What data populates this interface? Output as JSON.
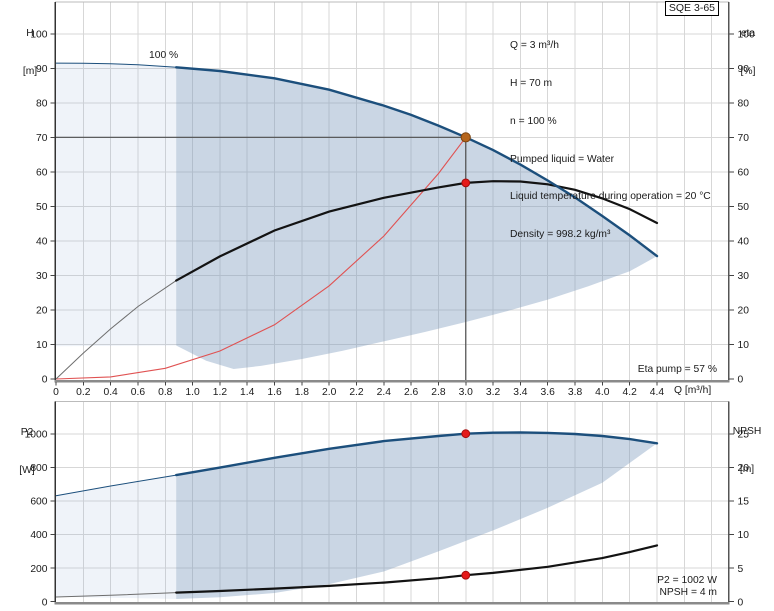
{
  "window": {
    "product": "SQE 3-65"
  },
  "labels": {
    "speed": "100 %",
    "eta_result": "Eta pump = 57 %",
    "p2_result": "P2 = 1002 W",
    "npsh_result": "NPSH = 4 m",
    "q_axis": "Q [m³/h]",
    "h_axis_1": "H",
    "h_axis_2": "[m]",
    "eta_axis_1": "eta",
    "eta_axis_2": "[%]",
    "p2_axis_1": "P2",
    "p2_axis_2": "[W]",
    "npsh_axis_1": "NPSH",
    "npsh_axis_2": "[m]"
  },
  "info_lines": [
    "Q = 3 m³/h",
    "H = 70 m",
    "n = 100 %",
    "Pumped liquid = Water",
    "Liquid temperature during operation = 20 °C",
    "Density = 998.2 kg/m³"
  ],
  "colors": {
    "curve_blue": "#1c4f7c",
    "curve_black": "#131313",
    "curve_black_thin": "#6e6e6e",
    "curve_red": "#e05252",
    "duty_line": "#4d4d4d",
    "marker_duty_fill": "#b5651d",
    "marker_duty_stroke": "#7d4410",
    "marker_red_fill": "#e51a1a",
    "marker_red_stroke": "#a50d0d",
    "fill_light": "rgba(140,170,210,0.14)",
    "fill_dark": "rgba(122,152,188,0.40)",
    "grid": "#d7d7d7",
    "axis_left": "#333333",
    "axis_right": "#555555",
    "axis_top": "#bbbbbb",
    "axis_bottom": "#8a8a8a",
    "tick": "#444444",
    "text": "#1a1a1a"
  },
  "chart_data": [
    {
      "type": "line",
      "name": "qh-eta-chart",
      "xlabel": "Q [m³/h]",
      "ylabel_left": "H [m]",
      "ylabel_right": "eta [%]",
      "xlim": [
        0,
        4.92
      ],
      "ylim": [
        0,
        109.2
      ],
      "right_scale": 1,
      "show_x_labels": true,
      "x_ticks": [
        0,
        0.2,
        0.4,
        0.6,
        0.8,
        1,
        1.2,
        1.4,
        1.6,
        1.8,
        2,
        2.2,
        2.4,
        2.6,
        2.8,
        3,
        3.2,
        3.4,
        3.6,
        3.8,
        4,
        4.2,
        4.4
      ],
      "x_tick_labels": [
        "0",
        "0.2",
        "0.4",
        "0.6",
        "0.8",
        "1.0",
        "1.2",
        "1.4",
        "1.6",
        "1.8",
        "2.0",
        "2.2",
        "2.4",
        "2.6",
        "2.8",
        "3.0",
        "3.2",
        "3.4",
        "3.6",
        "3.8",
        "4.0",
        "4.2",
        "4.4"
      ],
      "x_grid_extra": [
        4.6,
        4.8
      ],
      "y_ticks": [
        0,
        10,
        20,
        30,
        40,
        50,
        60,
        70,
        80,
        90,
        100
      ],
      "y_tick_labels": [
        "0",
        "10",
        "20",
        "30",
        "40",
        "50",
        "60",
        "70",
        "80",
        "90",
        "100"
      ],
      "right_ticks": [
        0,
        10,
        20,
        30,
        40,
        50,
        60,
        70,
        80,
        90,
        100
      ],
      "right_tick_labels": [
        "0",
        "10",
        "20",
        "30",
        "40",
        "50",
        "60",
        "70",
        "80",
        "90",
        "100"
      ],
      "areas": [
        {
          "name": "duty-area-light",
          "fill": "fill_light",
          "upper": [
            [
              0,
              91.5
            ],
            [
              0.2,
              91.45
            ],
            [
              0.4,
              91.3
            ],
            [
              0.6,
              91.0
            ],
            [
              0.88,
              90.3
            ]
          ],
          "lower": [
            [
              0,
              9.5
            ],
            [
              0.88,
              9.7
            ]
          ]
        },
        {
          "name": "duty-area-dark",
          "fill": "fill_dark",
          "upper": [
            [
              0.88,
              90.3
            ],
            [
              1.2,
              89.2
            ],
            [
              1.6,
              87.1
            ],
            [
              2.0,
              83.8
            ],
            [
              2.4,
              79.2
            ],
            [
              2.6,
              76.5
            ],
            [
              2.8,
              73.4
            ],
            [
              3.0,
              70.0
            ],
            [
              3.2,
              66.3
            ],
            [
              3.4,
              62.1
            ],
            [
              3.6,
              57.5
            ],
            [
              3.8,
              52.6
            ],
            [
              4.0,
              47.2
            ],
            [
              4.2,
              41.6
            ],
            [
              4.4,
              35.6
            ]
          ],
          "lower": [
            [
              0.88,
              9.7
            ],
            [
              1.1,
              5.3
            ],
            [
              1.3,
              2.9
            ],
            [
              1.5,
              3.8
            ],
            [
              1.8,
              5.8
            ],
            [
              2.1,
              8.2
            ],
            [
              2.4,
              10.9
            ],
            [
              2.7,
              13.6
            ],
            [
              3.0,
              16.5
            ],
            [
              3.3,
              19.6
            ],
            [
              3.6,
              23.0
            ],
            [
              3.9,
              26.9
            ],
            [
              4.2,
              31.2
            ],
            [
              4.4,
              35.6
            ]
          ]
        }
      ],
      "series": [
        {
          "name": "system-curve",
          "color": "curve_red",
          "width": 1.1,
          "points": [
            [
              0,
              0
            ],
            [
              0.4,
              0.6
            ],
            [
              0.8,
              3.1
            ],
            [
              1.2,
              8.1
            ],
            [
              1.6,
              15.7
            ],
            [
              2.0,
              27.0
            ],
            [
              2.4,
              41.4
            ],
            [
              2.8,
              59.5
            ],
            [
              3.0,
              70.0
            ]
          ]
        },
        {
          "name": "eta-curve",
          "color": "curve_black",
          "thin_color": "curve_black_thin",
          "width": 2.2,
          "thin_until": 0.88,
          "points": [
            [
              0,
              0
            ],
            [
              0.2,
              7.5
            ],
            [
              0.4,
              14.5
            ],
            [
              0.6,
              21.0
            ],
            [
              0.88,
              28.5
            ],
            [
              1.2,
              35.5
            ],
            [
              1.6,
              43.0
            ],
            [
              2.0,
              48.5
            ],
            [
              2.4,
              52.5
            ],
            [
              2.8,
              55.5
            ],
            [
              3.0,
              56.8
            ],
            [
              3.2,
              57.3
            ],
            [
              3.4,
              57.2
            ],
            [
              3.6,
              56.4
            ],
            [
              3.8,
              54.8
            ],
            [
              4.0,
              52.3
            ],
            [
              4.2,
              49.2
            ],
            [
              4.4,
              45.2
            ]
          ]
        },
        {
          "name": "pump-curve-100pct",
          "color": "curve_blue",
          "thin_color": "curve_blue",
          "width": 2.4,
          "thin_until": 0.88,
          "points": [
            [
              0,
              91.5
            ],
            [
              0.2,
              91.45
            ],
            [
              0.4,
              91.3
            ],
            [
              0.6,
              91.0
            ],
            [
              0.88,
              90.3
            ],
            [
              1.2,
              89.2
            ],
            [
              1.6,
              87.1
            ],
            [
              2.0,
              83.8
            ],
            [
              2.4,
              79.2
            ],
            [
              2.6,
              76.5
            ],
            [
              2.8,
              73.4
            ],
            [
              3.0,
              70.0
            ],
            [
              3.2,
              66.3
            ],
            [
              3.4,
              62.1
            ],
            [
              3.6,
              57.5
            ],
            [
              3.8,
              52.6
            ],
            [
              4.0,
              47.2
            ],
            [
              4.2,
              41.6
            ],
            [
              4.4,
              35.6
            ]
          ]
        }
      ],
      "ref_lines": [
        {
          "type": "h",
          "v": 70,
          "q1": 0,
          "q2": 3
        },
        {
          "type": "v",
          "q": 3,
          "v_top": 70,
          "to_axis": true
        }
      ],
      "markers": [
        {
          "name": "eta-point",
          "q": 3,
          "v": 56.8,
          "style": "red",
          "r": 3.9
        },
        {
          "name": "duty-point",
          "q": 3,
          "v": 70,
          "style": "duty",
          "r": 4.6
        }
      ]
    },
    {
      "type": "line",
      "name": "p2-npsh-chart",
      "xlabel": "Q [m³/h]",
      "ylabel_left": "P2 [W]",
      "ylabel_right": "NPSH [m]",
      "xlim": [
        0,
        4.92
      ],
      "ylim": [
        0,
        1194
      ],
      "right_scale": 40,
      "show_x_labels": false,
      "x_ticks": [
        0,
        0.2,
        0.4,
        0.6,
        0.8,
        1,
        1.2,
        1.4,
        1.6,
        1.8,
        2,
        2.2,
        2.4,
        2.6,
        2.8,
        3,
        3.2,
        3.4,
        3.6,
        3.8,
        4,
        4.2,
        4.4
      ],
      "x_tick_labels": [],
      "x_grid_extra": [
        4.6,
        4.8
      ],
      "y_ticks": [
        0,
        200,
        400,
        600,
        800,
        1000
      ],
      "y_tick_labels": [
        "0",
        "200",
        "400",
        "600",
        "800",
        "1000"
      ],
      "right_ticks": [
        0,
        5,
        10,
        15,
        20,
        25
      ],
      "right_tick_labels": [
        "0",
        "5",
        "10",
        "15",
        "20",
        "25"
      ],
      "areas": [
        {
          "name": "p2-area-light",
          "fill": "fill_light",
          "upper": [
            [
              0,
              632
            ],
            [
              0.4,
              690
            ],
            [
              0.88,
              755
            ]
          ],
          "lower": [
            [
              0,
              30
            ],
            [
              0.88,
              16
            ]
          ]
        },
        {
          "name": "p2-area-dark",
          "fill": "fill_dark",
          "upper": [
            [
              0.88,
              755
            ],
            [
              1.2,
              800
            ],
            [
              1.6,
              858
            ],
            [
              2.0,
              912
            ],
            [
              2.4,
              958
            ],
            [
              2.8,
              988
            ],
            [
              3.0,
              1002
            ],
            [
              3.2,
              1008
            ],
            [
              3.4,
              1010
            ],
            [
              3.6,
              1007
            ],
            [
              3.8,
              1000
            ],
            [
              4.0,
              988
            ],
            [
              4.2,
              970
            ],
            [
              4.4,
              945
            ]
          ],
          "lower": [
            [
              0.88,
              16
            ],
            [
              1.2,
              26
            ],
            [
              1.6,
              52
            ],
            [
              2.0,
              105
            ],
            [
              2.4,
              180
            ],
            [
              2.8,
              300
            ],
            [
              3.2,
              425
            ],
            [
              3.6,
              560
            ],
            [
              4.0,
              710
            ],
            [
              4.4,
              945
            ]
          ]
        }
      ],
      "series": [
        {
          "name": "npsh-curve",
          "color": "curve_black",
          "thin_color": "curve_black_thin",
          "width": 2.2,
          "thin_until": 0.88,
          "axis": "right",
          "points": [
            [
              0,
              0.7
            ],
            [
              0.4,
              0.95
            ],
            [
              0.88,
              1.35
            ],
            [
              1.2,
              1.6
            ],
            [
              1.6,
              1.95
            ],
            [
              2.0,
              2.35
            ],
            [
              2.4,
              2.85
            ],
            [
              2.8,
              3.5
            ],
            [
              3.0,
              3.95
            ],
            [
              3.2,
              4.3
            ],
            [
              3.6,
              5.2
            ],
            [
              4.0,
              6.5
            ],
            [
              4.2,
              7.4
            ],
            [
              4.4,
              8.4
            ]
          ]
        },
        {
          "name": "p2-curve",
          "color": "curve_blue",
          "thin_color": "curve_blue",
          "width": 2.4,
          "thin_until": 0.88,
          "points": [
            [
              0,
              632
            ],
            [
              0.4,
              690
            ],
            [
              0.88,
              755
            ],
            [
              1.2,
              800
            ],
            [
              1.6,
              858
            ],
            [
              2.0,
              912
            ],
            [
              2.4,
              958
            ],
            [
              2.8,
              988
            ],
            [
              3.0,
              1002
            ],
            [
              3.2,
              1008
            ],
            [
              3.4,
              1010
            ],
            [
              3.6,
              1007
            ],
            [
              3.8,
              1000
            ],
            [
              4.0,
              988
            ],
            [
              4.2,
              970
            ],
            [
              4.4,
              945
            ]
          ]
        }
      ],
      "ref_lines": [],
      "markers": [
        {
          "name": "p2-point",
          "q": 3,
          "v": 1002,
          "style": "red",
          "r": 3.9
        },
        {
          "name": "npsh-point",
          "q": 3,
          "v": 3.95,
          "axis": "right",
          "style": "red",
          "r": 3.9
        }
      ]
    }
  ]
}
